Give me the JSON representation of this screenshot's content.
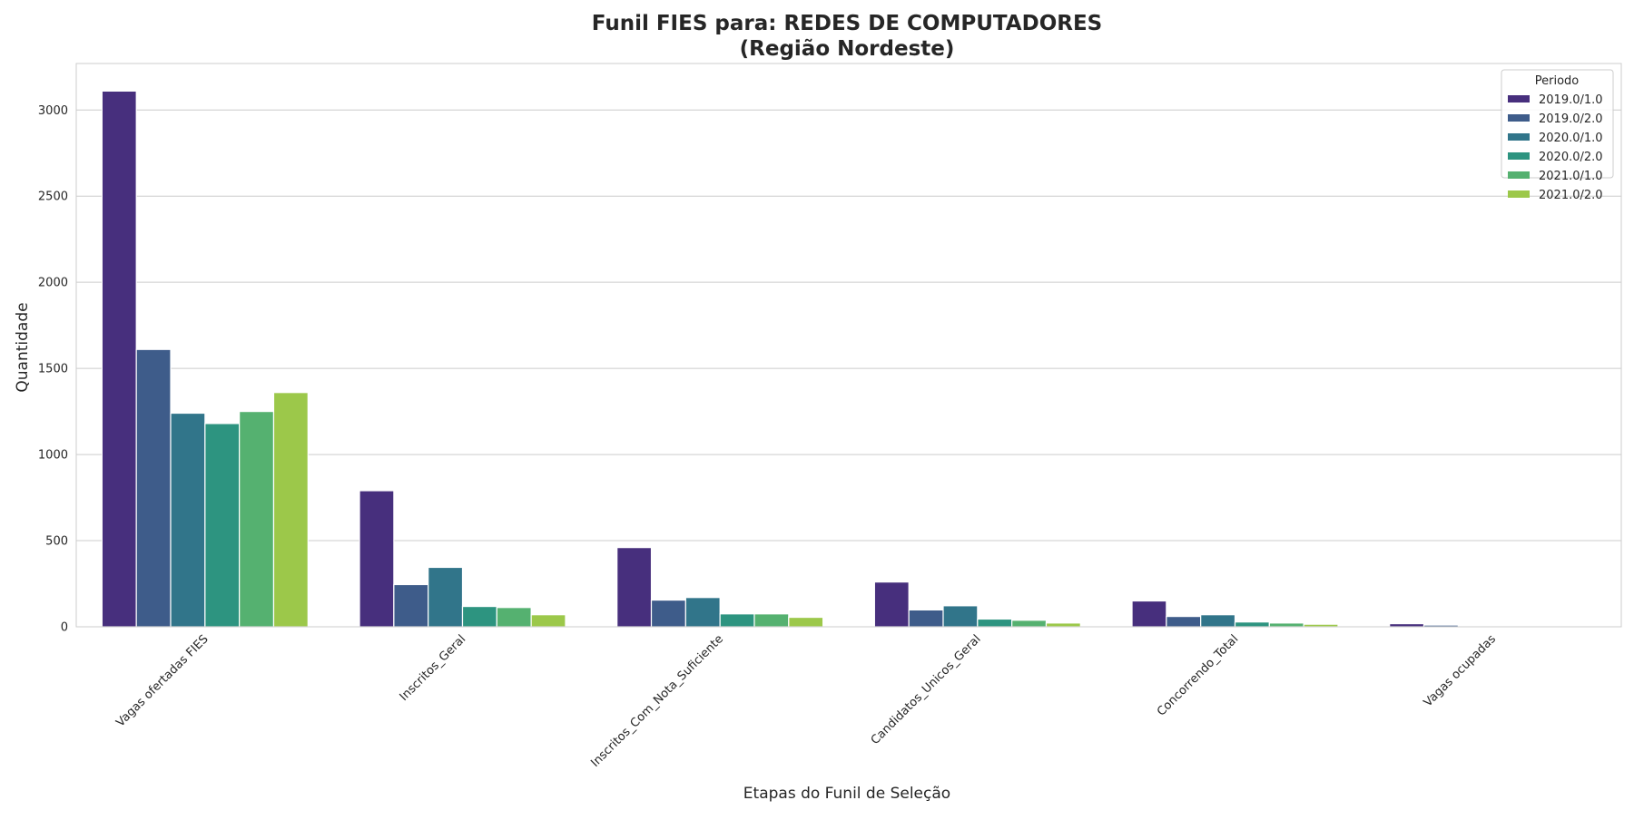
{
  "chart_data": {
    "type": "bar",
    "title_line1": "Funil FIES para: REDES DE COMPUTADORES",
    "title_line2": "(Região Nordeste)",
    "xlabel": "Etapas do Funil de Seleção",
    "ylabel": "Quantidade",
    "categories": [
      "Vagas ofertadas FIES",
      "Inscritos_Geral",
      "Inscritos_Com_Nota_Suficiente",
      "Candidatos_Unicos_Geral",
      "Concorrendo_Total",
      "Vagas ocupadas"
    ],
    "ylim": [
      0,
      3270
    ],
    "yticks": [
      0,
      500,
      1000,
      1500,
      2000,
      2500,
      3000
    ],
    "grid": true,
    "legend_title": "Periodo",
    "legend_position": "top-right",
    "series": [
      {
        "name": "2019.0/1.0",
        "color": "#472f7d",
        "values": [
          3110,
          790,
          460,
          260,
          150,
          18
        ]
      },
      {
        "name": "2019.0/2.0",
        "color": "#3e5c8a",
        "values": [
          1610,
          245,
          155,
          98,
          60,
          10
        ]
      },
      {
        "name": "2020.0/1.0",
        "color": "#31758a",
        "values": [
          1240,
          345,
          170,
          122,
          70,
          0
        ]
      },
      {
        "name": "2020.0/2.0",
        "color": "#2d9480",
        "values": [
          1180,
          118,
          75,
          45,
          28,
          0
        ]
      },
      {
        "name": "2021.0/1.0",
        "color": "#55b170",
        "values": [
          1250,
          112,
          75,
          38,
          22,
          0
        ]
      },
      {
        "name": "2021.0/2.0",
        "color": "#9cc84a",
        "values": [
          1360,
          70,
          55,
          22,
          15,
          0
        ]
      }
    ]
  }
}
